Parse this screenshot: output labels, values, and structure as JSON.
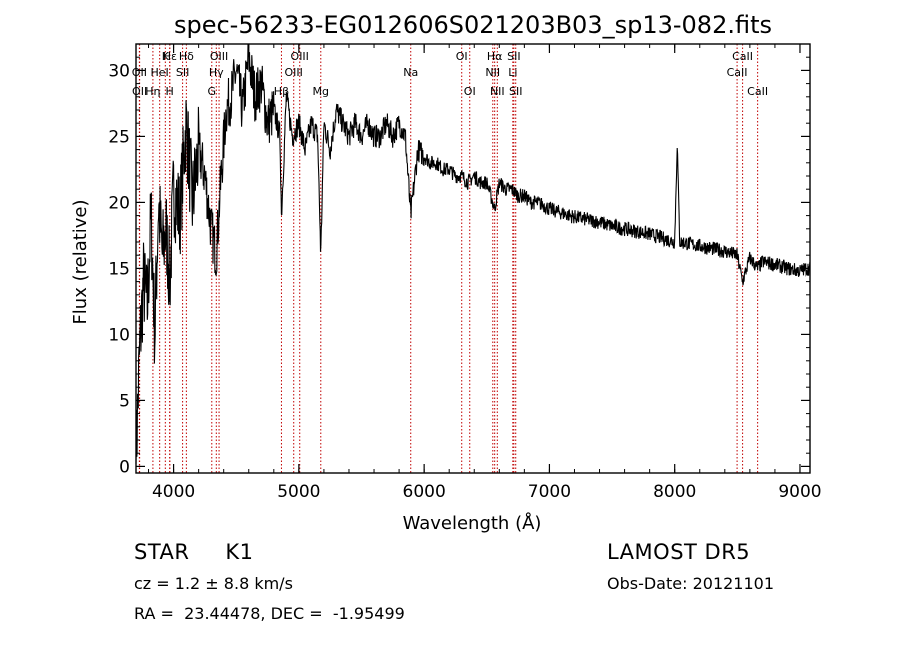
{
  "chart_data": {
    "type": "line",
    "title": "spec-56233-EG012606S021203B03_sp13-082.fits",
    "xlabel": "Wavelength (Å)",
    "ylabel": "Flux (relative)",
    "xlim": [
      3700,
      9080
    ],
    "ylim": [
      -0.5,
      32
    ],
    "xticks": [
      4000,
      5000,
      6000,
      7000,
      8000,
      9000
    ],
    "yticks": [
      0,
      5,
      10,
      15,
      20,
      25,
      30
    ],
    "grid": false,
    "series": [
      {
        "x": [
          3700,
          3730,
          3760,
          3790,
          3820,
          3850,
          3880,
          3910,
          3940,
          3970,
          4000,
          4050,
          4100,
          4150,
          4200,
          4250,
          4300,
          4340,
          4380,
          4420,
          4460,
          4500,
          4550,
          4600,
          4650,
          4700,
          4750,
          4800,
          4850,
          4861,
          4900,
          4950,
          5000,
          5050,
          5100,
          5150,
          5175,
          5200,
          5250,
          5300,
          5350,
          5400,
          5450,
          5500,
          5550,
          5600,
          5650,
          5700,
          5750,
          5800,
          5850,
          5893,
          5950,
          6000,
          6050,
          6100,
          6150,
          6200,
          6250,
          6300,
          6350,
          6400,
          6450,
          6500,
          6563,
          6600,
          6650,
          6700,
          6750,
          6800,
          6850,
          6900,
          6950,
          7000,
          7100,
          7200,
          7300,
          7400,
          7500,
          7600,
          7700,
          7800,
          7900,
          8000,
          8020,
          8040,
          8100,
          8200,
          8300,
          8400,
          8498,
          8542,
          8600,
          8662,
          8700,
          8800,
          8900,
          9000,
          9050
        ],
        "y": [
          0.5,
          9,
          14,
          12,
          19,
          10,
          20,
          16,
          18,
          14,
          21,
          19,
          26,
          20,
          24,
          22,
          18,
          16,
          22,
          27,
          28,
          30,
          27,
          31,
          28,
          29,
          26,
          27,
          25,
          19,
          28,
          25,
          26,
          24,
          26,
          25,
          16,
          26,
          24,
          27,
          26,
          25,
          26,
          25,
          26,
          25,
          25,
          26,
          25,
          26,
          25,
          19,
          24,
          23.5,
          23,
          23,
          22.5,
          22.5,
          22,
          22,
          21.5,
          22,
          21.5,
          21.5,
          19.5,
          21.5,
          21,
          21,
          20.5,
          20.5,
          20,
          20,
          19.8,
          19.5,
          19.2,
          18.9,
          18.7,
          18.5,
          18.2,
          18,
          17.8,
          17.6,
          17.3,
          17,
          24.5,
          17,
          16.9,
          16.7,
          16.5,
          16.3,
          16,
          14,
          15.8,
          15,
          15.5,
          15.3,
          15,
          14.8,
          15
        ]
      }
    ],
    "lines": [
      {
        "label": "Hδ",
        "wavelength": 4102,
        "row": 1
      },
      {
        "label": "K",
        "wavelength": 3934,
        "row": 1
      },
      {
        "label": "Hε",
        "wavelength": 3970,
        "row": 1
      },
      {
        "label": "OII",
        "wavelength": 3727,
        "row": 2
      },
      {
        "label": "HeI",
        "wavelength": 3889,
        "row": 2
      },
      {
        "label": "SII",
        "wavelength": 4072,
        "row": 2
      },
      {
        "label": "OII",
        "wavelength": 3729,
        "row": 3
      },
      {
        "label": "Hη",
        "wavelength": 3835,
        "row": 3
      },
      {
        "label": "H",
        "wavelength": 3969,
        "row": 3
      },
      {
        "label": "OIII",
        "wavelength": 4363,
        "row": 1
      },
      {
        "label": "Hγ",
        "wavelength": 4341,
        "row": 2
      },
      {
        "label": "G",
        "wavelength": 4305,
        "row": 3
      },
      {
        "label": "OIII",
        "wavelength": 5007,
        "row": 1
      },
      {
        "label": "OIII",
        "wavelength": 4959,
        "row": 2
      },
      {
        "label": "Hβ",
        "wavelength": 4861,
        "row": 3
      },
      {
        "label": "Mg",
        "wavelength": 5175,
        "row": 3
      },
      {
        "label": "Na",
        "wavelength": 5893,
        "row": 2
      },
      {
        "label": "OI",
        "wavelength": 6300,
        "row": 1
      },
      {
        "label": "OI",
        "wavelength": 6364,
        "row": 3
      },
      {
        "label": "Hα",
        "wavelength": 6563,
        "row": 1
      },
      {
        "label": "SII",
        "wavelength": 6716,
        "row": 1
      },
      {
        "label": "NII",
        "wavelength": 6548,
        "row": 2
      },
      {
        "label": "Li",
        "wavelength": 6708,
        "row": 2
      },
      {
        "label": "NII",
        "wavelength": 6584,
        "row": 3
      },
      {
        "label": "SII",
        "wavelength": 6731,
        "row": 3
      },
      {
        "label": "CaII",
        "wavelength": 8542,
        "row": 1
      },
      {
        "label": "CaII",
        "wavelength": 8498,
        "row": 2
      },
      {
        "label": "CaII",
        "wavelength": 8662,
        "row": 3
      }
    ]
  },
  "info": {
    "class_text": "STAR     K1",
    "survey": "LAMOST DR5",
    "cz": "cz = 1.2 ± 8.8 km/s",
    "obs_date": "Obs-Date: 20121101",
    "coords": "RA =  23.44478, DEC =  -1.95499"
  },
  "colors": {
    "spectrum": "#000000",
    "line_marker": "#c00000",
    "axis": "#000000"
  }
}
